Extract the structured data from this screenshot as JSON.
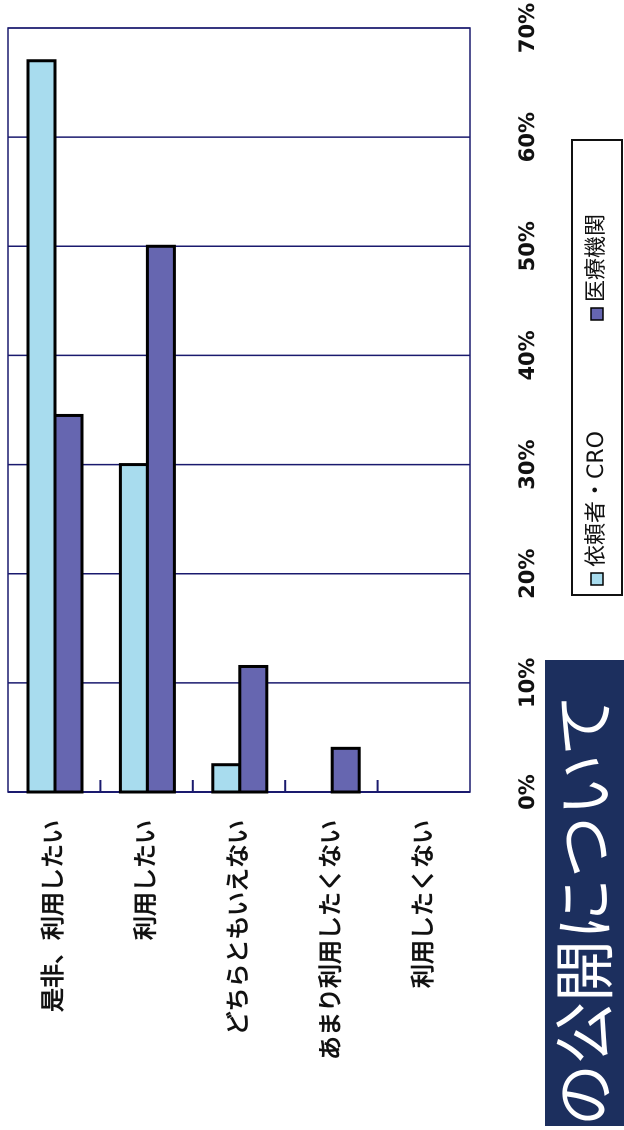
{
  "chart_data": {
    "type": "bar",
    "orientation": "horizontal",
    "categories": [
      "是非、利用したい",
      "利用したい",
      "どちらともいえない",
      "あまり利用したくない",
      "利用したくない"
    ],
    "series": [
      {
        "name": "依頼者・CRO",
        "color": "#a8dcee",
        "values": [
          67,
          30,
          2.5,
          0,
          0
        ]
      },
      {
        "name": "医療機関",
        "color": "#6666b0",
        "values": [
          34.5,
          50,
          11.5,
          4,
          0
        ]
      }
    ],
    "xlim": [
      0,
      70
    ],
    "ticks": [
      "0%",
      "10%",
      "20%",
      "30%",
      "40%",
      "50%",
      "60%",
      "70%"
    ],
    "grid": true,
    "legend_position": "bottom-right"
  },
  "banner": {
    "text": "の公開について"
  },
  "colors": {
    "gridline": "#1a1a6e",
    "banner_bg": "#1c2f5e",
    "banner_text": "#ffffff"
  }
}
